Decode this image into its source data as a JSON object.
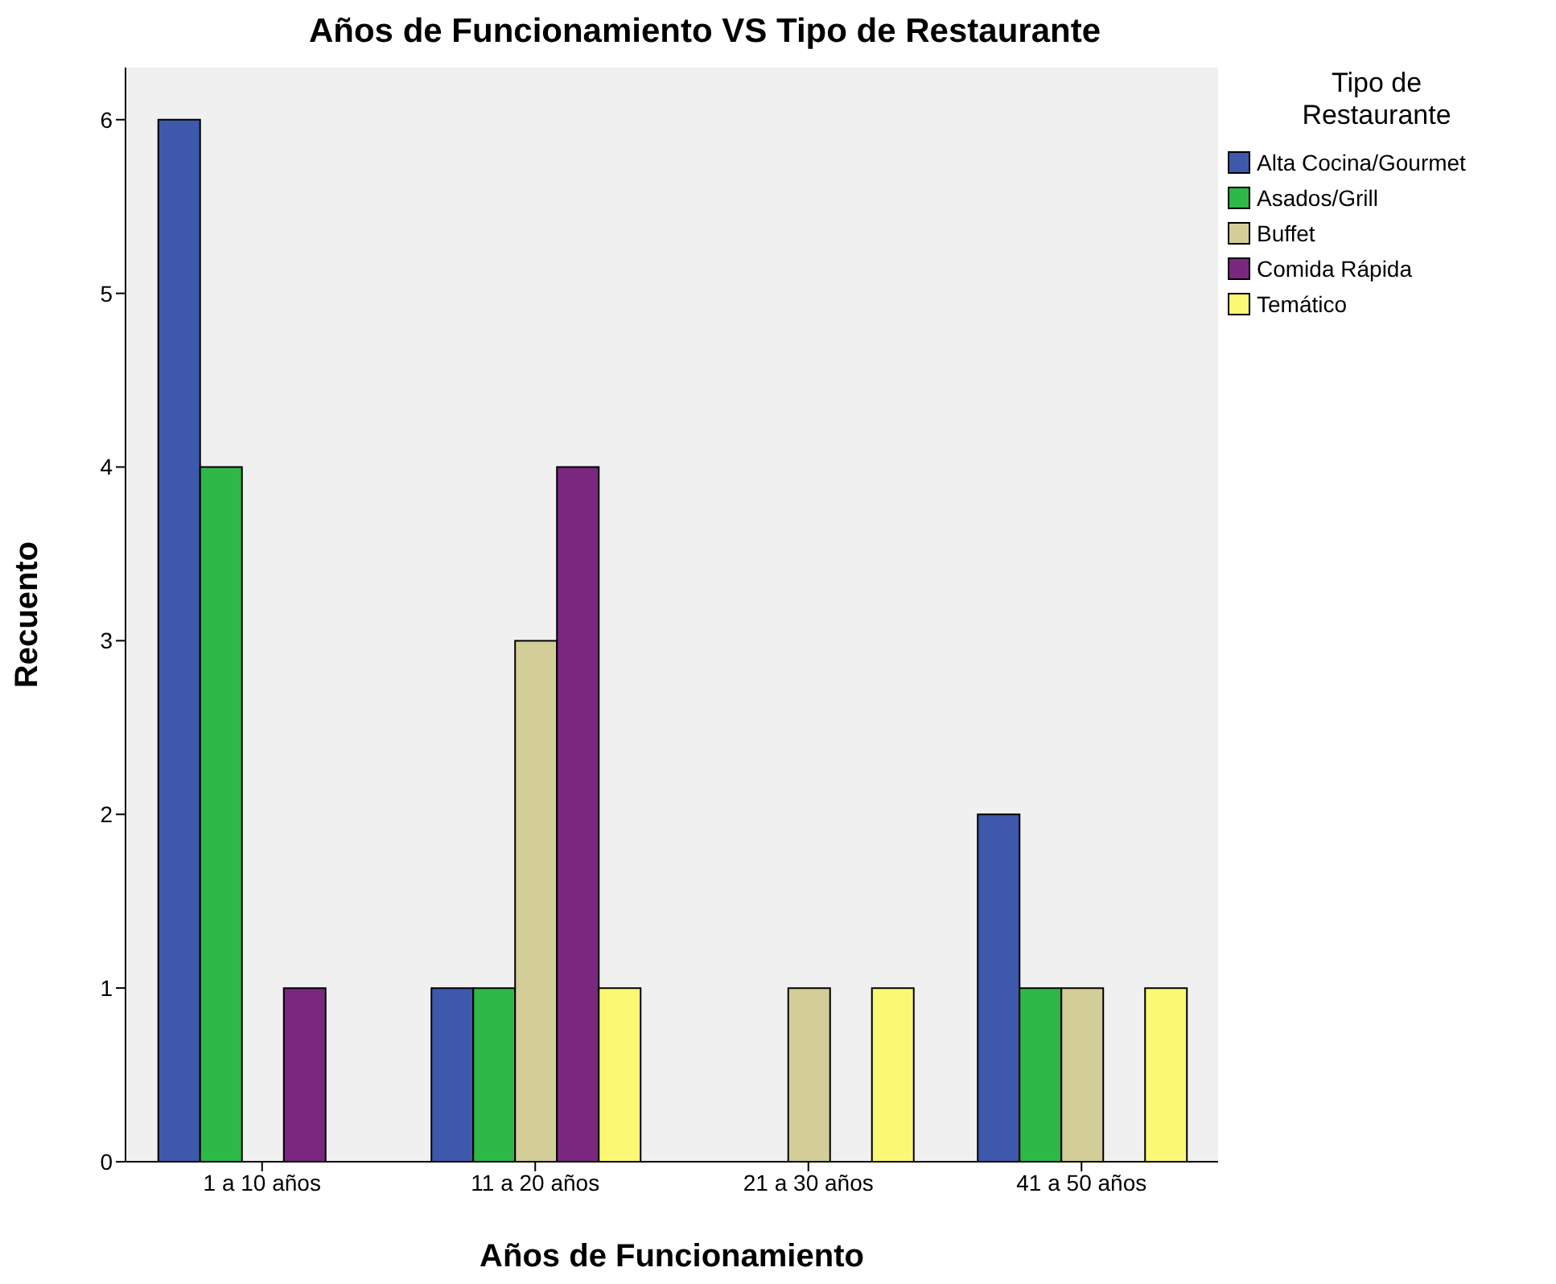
{
  "chart_data": {
    "type": "bar",
    "title": "Años de Funcionamiento VS Tipo de Restaurante",
    "xlabel": "Años de Funcionamiento",
    "ylabel": "Recuento",
    "legend_title": "Tipo de Restaurante",
    "categories": [
      "1 a 10 años",
      "11 a 20 años",
      "21 a 30 años",
      "41 a 50 años"
    ],
    "series": [
      {
        "name": "Alta Cocina/Gourmet",
        "color": "#3e58ac",
        "values": [
          6,
          1,
          0,
          2
        ]
      },
      {
        "name": "Asados/Grill",
        "color": "#2eb848",
        "values": [
          4,
          1,
          0,
          1
        ]
      },
      {
        "name": "Buffet",
        "color": "#d3ce97",
        "values": [
          0,
          3,
          1,
          1
        ]
      },
      {
        "name": "Comida Rápida",
        "color": "#7a287f",
        "values": [
          1,
          4,
          0,
          0
        ]
      },
      {
        "name": "Temático",
        "color": "#fbf873",
        "values": [
          0,
          1,
          1,
          1
        ]
      }
    ],
    "ylim": [
      0,
      6.3
    ],
    "yticks": [
      0,
      1,
      2,
      3,
      4,
      5,
      6
    ],
    "grid": false,
    "legend": "right"
  }
}
